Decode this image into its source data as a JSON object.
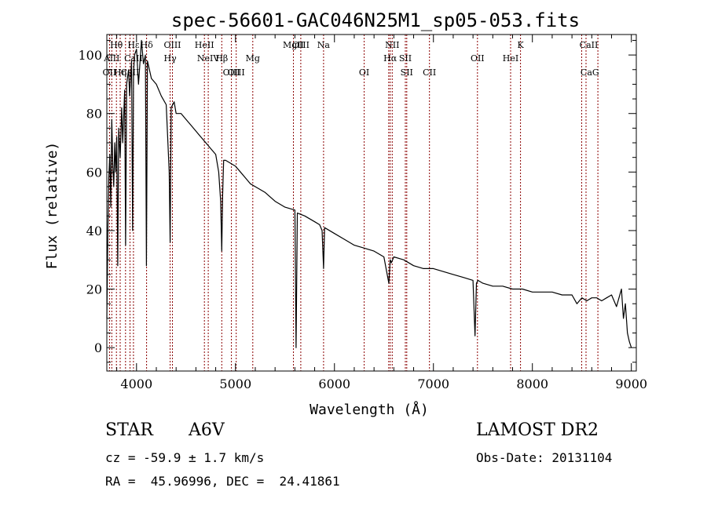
{
  "chart_data": {
    "type": "line",
    "title": "spec-56601-GAC046N25M1_sp05-053.fits",
    "xlabel": "Wavelength (Å)",
    "ylabel": "Flux (relative)",
    "xlim": [
      3700,
      9050
    ],
    "ylim": [
      -8,
      107
    ],
    "x_ticks": [
      4000,
      5000,
      6000,
      7000,
      8000,
      9000
    ],
    "y_ticks": [
      0,
      20,
      40,
      60,
      80,
      100
    ],
    "grid": false,
    "line_color": "#000000",
    "marker_color": "#8b0000",
    "series": [
      {
        "x": [
          3700,
          3710,
          3720,
          3730,
          3740,
          3750,
          3760,
          3770,
          3780,
          3790,
          3800,
          3810,
          3820,
          3835,
          3850,
          3860,
          3880,
          3890,
          3900,
          3920,
          3930,
          3950,
          3960,
          3970,
          3980,
          4000,
          4020,
          4050,
          4070,
          4090,
          4100,
          4110,
          4130,
          4150,
          4200,
          4250,
          4300,
          4330,
          4340,
          4350,
          4380,
          4400,
          4450,
          4500,
          4550,
          4600,
          4650,
          4700,
          4750,
          4800,
          4830,
          4850,
          4861,
          4870,
          4880,
          4900,
          4950,
          5000,
          5050,
          5100,
          5150,
          5200,
          5300,
          5400,
          5500,
          5600,
          5612,
          5625,
          5700,
          5800,
          5850,
          5875,
          5890,
          5900,
          6000,
          6100,
          6200,
          6300,
          6400,
          6500,
          6550,
          6563,
          6575,
          6600,
          6700,
          6800,
          6900,
          7000,
          7100,
          7200,
          7300,
          7400,
          7420,
          7435,
          7450,
          7500,
          7600,
          7700,
          7800,
          7900,
          8000,
          8100,
          8200,
          8300,
          8400,
          8450,
          8500,
          8550,
          8600,
          8650,
          8700,
          8750,
          8800,
          8850,
          8900,
          8920,
          8940,
          8960,
          8980,
          9000
        ],
        "y": [
          10,
          40,
          58,
          66,
          48,
          78,
          62,
          55,
          70,
          60,
          72,
          28,
          75,
          65,
          82,
          70,
          88,
          35,
          90,
          95,
          86,
          98,
          40,
          94,
          100,
          102,
          90,
          105,
          97,
          100,
          28,
          98,
          95,
          92,
          90,
          86,
          83,
          60,
          36,
          82,
          84,
          80,
          80,
          78,
          76,
          74,
          72,
          70,
          68,
          66,
          60,
          50,
          33,
          52,
          64,
          64,
          63,
          62,
          60,
          58,
          56,
          55,
          53,
          50,
          48,
          47,
          0,
          46,
          45,
          43,
          42,
          40,
          27,
          41,
          39,
          37,
          35,
          34,
          33,
          31,
          22,
          30,
          29,
          31,
          30,
          28,
          27,
          27,
          26,
          25,
          24,
          23,
          4,
          22,
          23,
          22,
          21,
          21,
          20,
          20,
          19,
          19,
          19,
          18,
          18,
          15,
          17,
          16,
          17,
          17,
          16,
          17,
          18,
          14,
          20,
          10,
          15,
          5,
          2,
          0
        ]
      }
    ],
    "lines": [
      {
        "label": "Hθ",
        "wavelength": 3797,
        "row": 0
      },
      {
        "label": "AlII",
        "wavelength": 3750,
        "row": 1
      },
      {
        "label": "OII",
        "wavelength": 3727,
        "row": 2
      },
      {
        "label": "Hη",
        "wavelength": 3835,
        "row": 2
      },
      {
        "label": "CaII",
        "wavelength": 3934,
        "row": 2
      },
      {
        "label": "CaII",
        "wavelength": 3969,
        "row": 1
      },
      {
        "label": "Hε",
        "wavelength": 3970,
        "row": 0
      },
      {
        "label": "Hδ",
        "wavelength": 4102,
        "row": 0
      },
      {
        "label": "OIII",
        "wavelength": 4363,
        "row": 0
      },
      {
        "label": "Hγ",
        "wavelength": 4340,
        "row": 1
      },
      {
        "label": "HeII",
        "wavelength": 4686,
        "row": 0
      },
      {
        "label": "NeIV",
        "wavelength": 4725,
        "row": 1
      },
      {
        "label": "Hβ",
        "wavelength": 4861,
        "row": 1
      },
      {
        "label": "OIII",
        "wavelength": 4959,
        "row": 2
      },
      {
        "label": "OIII",
        "wavelength": 5007,
        "row": 2
      },
      {
        "label": "Mg",
        "wavelength": 5175,
        "row": 1
      },
      {
        "label": "MgII",
        "wavelength": 5585,
        "row": 0
      },
      {
        "label": "OIII",
        "wavelength": 5660,
        "row": 0
      },
      {
        "label": "Na",
        "wavelength": 5890,
        "row": 0
      },
      {
        "label": "OI",
        "wavelength": 6300,
        "row": 2
      },
      {
        "label": "NII",
        "wavelength": 6584,
        "row": 0
      },
      {
        "label": "Hα",
        "wavelength": 6563,
        "row": 1
      },
      {
        "label": "SII",
        "wavelength": 6716,
        "row": 1
      },
      {
        "label": "SII",
        "wavelength": 6731,
        "row": 2
      },
      {
        "label": "CII",
        "wavelength": 6960,
        "row": 2
      },
      {
        "label": "OII",
        "wavelength": 7445,
        "row": 1
      },
      {
        "label": "HeI",
        "wavelength": 7780,
        "row": 1
      },
      {
        "label": "K",
        "wavelength": 7880,
        "row": 0
      },
      {
        "label": "CaII",
        "wavelength": 8570,
        "row": 0
      },
      {
        "label": "CaG",
        "wavelength": 8580,
        "row": 2
      }
    ],
    "marker_wavelengths": [
      3727,
      3750,
      3797,
      3835,
      3889,
      3934,
      3969,
      4102,
      4340,
      4363,
      4686,
      4725,
      4861,
      4959,
      5007,
      5175,
      5585,
      5660,
      5890,
      6300,
      6548,
      6563,
      6584,
      6716,
      6731,
      6960,
      7445,
      7780,
      7880,
      8498,
      8542,
      8662
    ]
  },
  "info": {
    "class": "STAR",
    "subclass": "A6V",
    "survey": "LAMOST DR2",
    "cz": "cz = -59.9 ± 1.7 km/s",
    "obsdate": "Obs-Date: 20131104",
    "coords": "RA =  45.96996, DEC =  24.41861"
  }
}
